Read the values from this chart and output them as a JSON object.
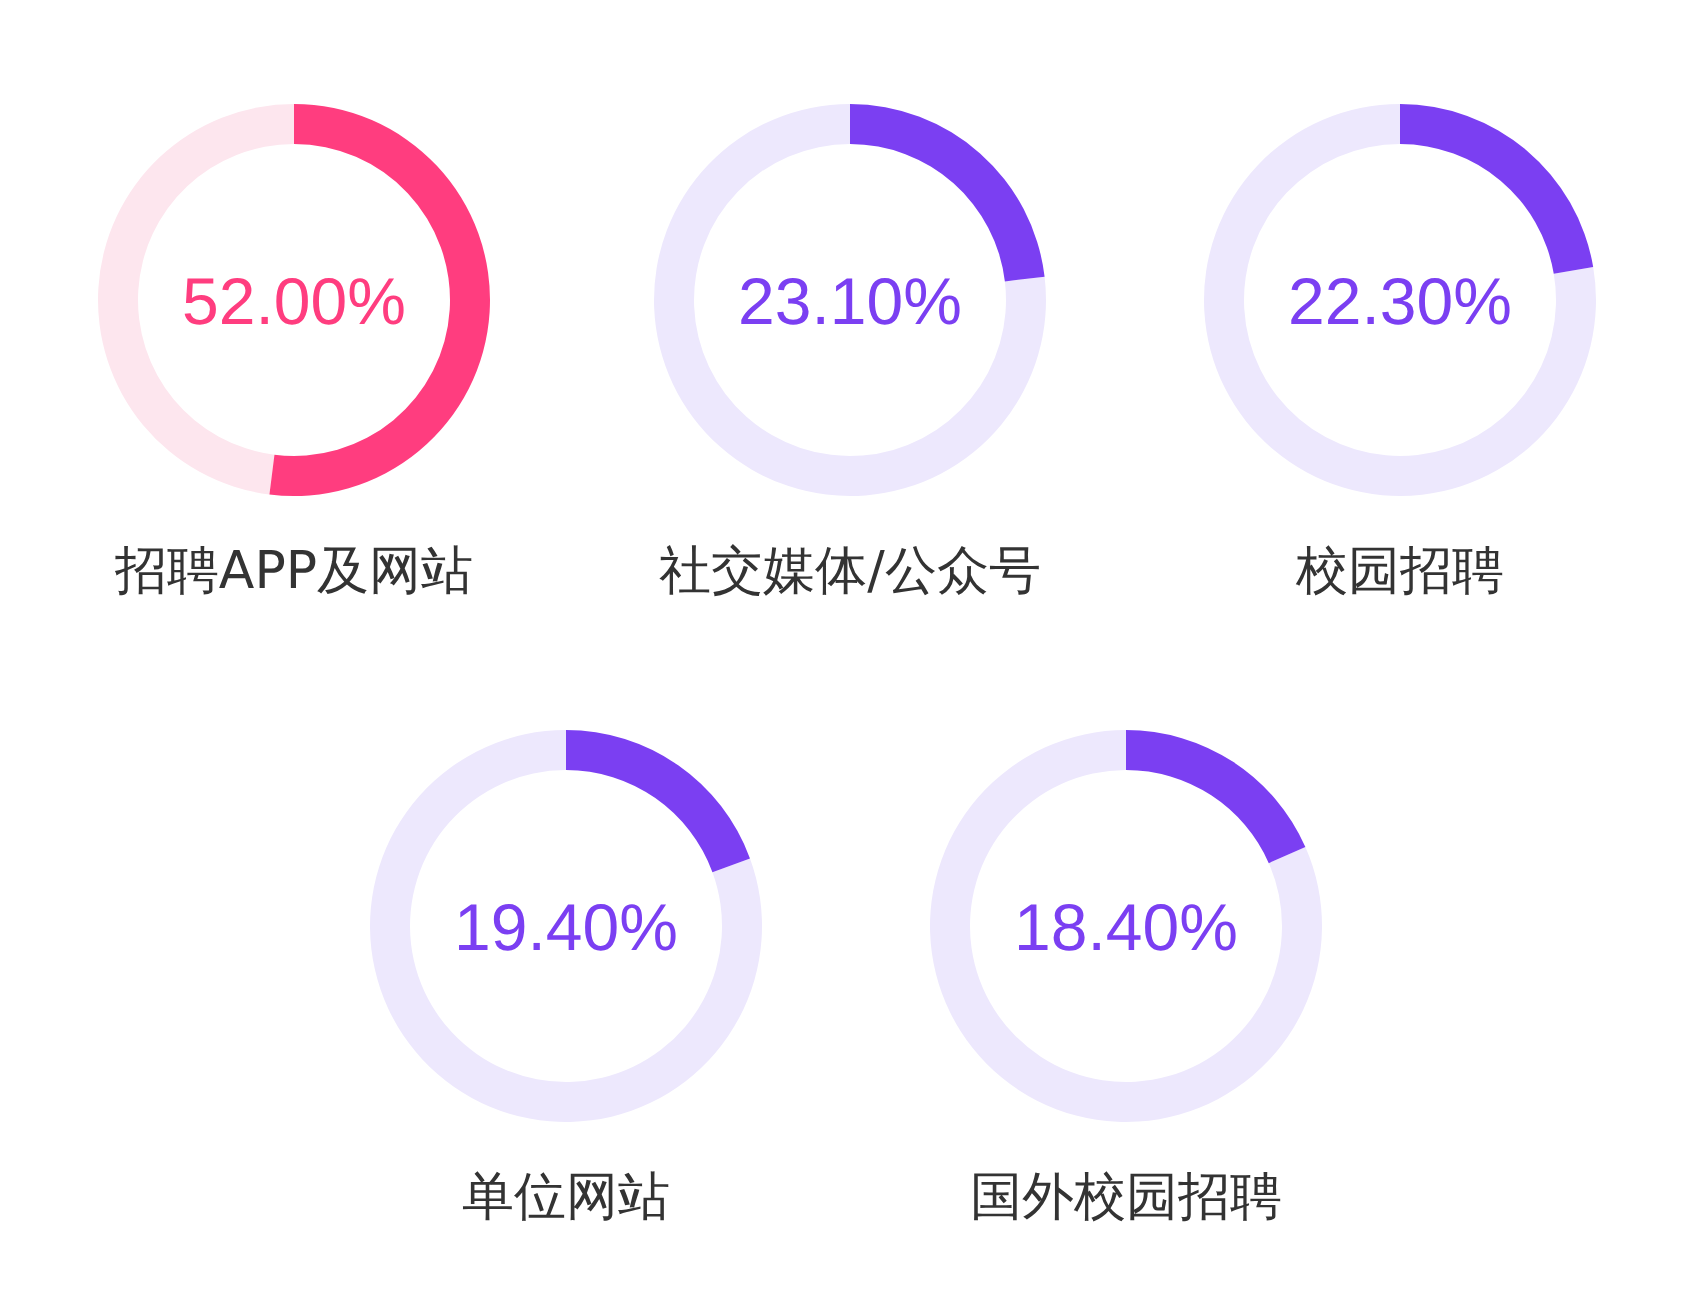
{
  "chart_data": [
    {
      "type": "donut",
      "title": "招聘APP及网站",
      "categories": [
        null,
        null
      ],
      "values": [
        52.0,
        48.0
      ],
      "colors": [
        "#ff3d7f",
        "#fde6ee"
      ],
      "annotations": [
        "52.00%"
      ]
    },
    {
      "type": "donut",
      "title": "社交媒体/公众号",
      "categories": [
        null,
        null
      ],
      "values": [
        23.1,
        76.9
      ],
      "colors": [
        "#7b3ff2",
        "#ede8fd"
      ],
      "annotations": [
        "23.10%"
      ]
    },
    {
      "type": "donut",
      "title": "校园招聘",
      "categories": [
        null,
        null
      ],
      "values": [
        22.3,
        77.7
      ],
      "colors": [
        "#7b3ff2",
        "#ede8fd"
      ],
      "annotations": [
        "22.30%"
      ]
    },
    {
      "type": "donut",
      "title": "单位网站",
      "categories": [
        null,
        null
      ],
      "values": [
        19.4,
        80.6
      ],
      "colors": [
        "#7b3ff2",
        "#ede8fd"
      ],
      "annotations": [
        "19.40%"
      ]
    },
    {
      "type": "donut",
      "title": "国外校园招聘",
      "categories": [
        null,
        null
      ],
      "values": [
        18.4,
        81.6
      ],
      "colors": [
        "#7b3ff2",
        "#ede8fd"
      ],
      "annotations": [
        "18.40%"
      ]
    }
  ]
}
